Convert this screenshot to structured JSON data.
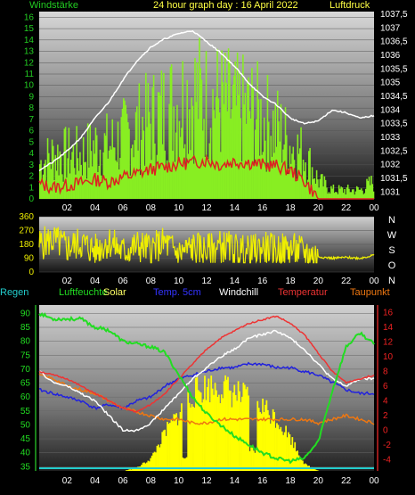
{
  "header": {
    "left": "Windstärke",
    "center": "24 hour graph day : 16 April 2022",
    "right": "Luftdruck"
  },
  "legend2": [
    "N",
    "W",
    "S",
    "O",
    "N"
  ],
  "legend3": {
    "regen": "Regen",
    "luftfeuchte": "Luftfeuchte",
    "solar": "Solar",
    "temp5cm": "Temp. 5cm",
    "windchill": "Windchill",
    "temperatur": "Temperatur",
    "taupunkt": "Taupunkt"
  },
  "colors": {
    "wind": "#88ee22",
    "gust": "#dd2222",
    "pressure": "#ffffff",
    "direction": "#eeee00",
    "humidity": "#22dd22",
    "solar": "#ffff00",
    "temp5cm": "#2222dd",
    "windchill": "#ffffff",
    "temperature": "#ee3333",
    "dewpoint": "#ee7711",
    "regen": "#22cccc"
  },
  "chart_data": [
    {
      "type": "bar",
      "title": "24 hour graph day : 16 April 2022",
      "x_ticks": [
        "02",
        "04",
        "06",
        "08",
        "10",
        "12",
        "14",
        "16",
        "18",
        "20",
        "22",
        "00"
      ],
      "y_left_label": "Windstärke",
      "y_left_ticks": [
        "0",
        "1",
        "2",
        "3",
        "4",
        "5",
        "6",
        "7",
        "8",
        "9",
        "10",
        "11",
        "12",
        "13",
        "14",
        "15",
        "16"
      ],
      "y_left_range": [
        0,
        16.5
      ],
      "y_right_label": "Luftdruck",
      "y_right_ticks": [
        "1031",
        "1031,5",
        "1032",
        "1032,5",
        "1033",
        "1033,5",
        "1034",
        "1034,5",
        "1035",
        "1035,5",
        "1036",
        "1036,5",
        "1037",
        "1037,5"
      ],
      "y_right_range": [
        1030.75,
        1037.6
      ],
      "hours": [
        0,
        1,
        2,
        3,
        4,
        5,
        6,
        7,
        8,
        9,
        10,
        11,
        12,
        13,
        14,
        15,
        16,
        17,
        18,
        19,
        20,
        21,
        22,
        23,
        24
      ],
      "series": [
        {
          "name": "Windstärke",
          "values": [
            4,
            5,
            5,
            5,
            6,
            6,
            7,
            8,
            9,
            10,
            11,
            12,
            11,
            11,
            10,
            10,
            9,
            8,
            6,
            5,
            2,
            1,
            1,
            1,
            2
          ]
        },
        {
          "name": "Böen",
          "values": [
            1.3,
            1.0,
            1.2,
            1.4,
            1.7,
            1.5,
            1.9,
            2.2,
            2.6,
            2.8,
            3.1,
            3.2,
            3.4,
            3.0,
            3.3,
            3.2,
            3.0,
            2.9,
            2.5,
            1.6,
            0,
            0,
            0,
            0,
            0
          ]
        },
        {
          "name": "Luftdruck",
          "values": [
            1031.8,
            1032.1,
            1032.5,
            1033.0,
            1033.7,
            1034.3,
            1035.1,
            1035.8,
            1036.3,
            1036.6,
            1036.8,
            1036.9,
            1036.5,
            1036.1,
            1035.6,
            1035.0,
            1034.5,
            1034.2,
            1033.7,
            1033.5,
            1033.6,
            1034.0,
            1033.9,
            1033.7,
            1033.8
          ]
        }
      ]
    },
    {
      "type": "line",
      "x_ticks": [
        "02",
        "04",
        "06",
        "08",
        "10",
        "12",
        "14",
        "16",
        "18",
        "20",
        "22",
        "00"
      ],
      "y_ticks": [
        "0",
        "90",
        "180",
        "270",
        "360"
      ],
      "y_range": [
        0,
        360
      ],
      "series": [
        {
          "name": "Windrichtung",
          "values": [
            180,
            210,
            160,
            190,
            140,
            200,
            130,
            170,
            150,
            190,
            120,
            160,
            140,
            170,
            150,
            130,
            160,
            140,
            150,
            130,
            100,
            90,
            95,
            90,
            110
          ]
        }
      ]
    },
    {
      "type": "line",
      "x_ticks": [
        "02",
        "04",
        "06",
        "08",
        "10",
        "12",
        "14",
        "16",
        "18",
        "20",
        "22",
        "00"
      ],
      "y_left_ticks": [
        "35",
        "40",
        "45",
        "50",
        "55",
        "60",
        "65",
        "70",
        "75",
        "80",
        "85",
        "90"
      ],
      "y_left_range": [
        33.5,
        93
      ],
      "y_right_ticks": [
        "-4",
        "-2",
        "0",
        "2",
        "4",
        "6",
        "8",
        "10",
        "12",
        "14",
        "16"
      ],
      "y_right_range": [
        -5.5,
        17
      ],
      "series": [
        {
          "name": "Luftfeuchte",
          "values": [
            90,
            88,
            88,
            88,
            85,
            84,
            80,
            79,
            78,
            76,
            68,
            60,
            54,
            50,
            46,
            43,
            40,
            38,
            37,
            38,
            44,
            62,
            78,
            83,
            79
          ]
        },
        {
          "name": "Solar",
          "values": [
            0,
            0,
            0,
            0,
            0,
            0,
            0,
            0.5,
            2,
            6,
            9,
            12,
            13,
            13,
            12,
            11,
            10,
            8,
            5,
            1,
            0,
            0,
            0,
            0,
            0
          ]
        },
        {
          "name": "Temp. 5cm",
          "values": [
            5.5,
            5,
            4.5,
            4,
            3,
            3.5,
            3,
            4,
            4.5,
            6,
            7,
            7.5,
            8,
            8.5,
            8.5,
            9,
            9,
            8.5,
            8.5,
            8,
            7.5,
            6.5,
            5.5,
            5,
            5
          ]
        },
        {
          "name": "Windchill",
          "values": [
            8,
            6.5,
            6,
            5,
            4,
            2,
            0,
            0,
            1,
            3,
            5,
            7,
            8.5,
            10,
            11,
            12.5,
            13,
            13.5,
            12.5,
            11,
            9,
            7,
            6,
            7,
            7
          ]
        },
        {
          "name": "Temperatur",
          "values": [
            8,
            7.5,
            7,
            6,
            5,
            4,
            3,
            2.5,
            3.5,
            5,
            7,
            9,
            11,
            12.5,
            13.5,
            14.5,
            15,
            15.5,
            14.5,
            13,
            10.5,
            8,
            6.5,
            7,
            7.5
          ]
        },
        {
          "name": "Taupunkt",
          "values": [
            7.5,
            7,
            6,
            5.5,
            5,
            4,
            3,
            2.5,
            2,
            1.5,
            1.5,
            1,
            1,
            1.5,
            1.5,
            1.5,
            1.5,
            1.5,
            1.5,
            1.5,
            1,
            1.5,
            2,
            1.5,
            1
          ]
        },
        {
          "name": "Regen",
          "values": [
            0,
            0,
            0,
            0,
            0,
            0,
            0,
            0,
            0,
            0,
            0,
            0,
            0,
            0,
            0,
            0,
            0,
            0,
            0,
            0,
            0,
            0,
            0,
            0,
            0
          ]
        }
      ]
    }
  ]
}
